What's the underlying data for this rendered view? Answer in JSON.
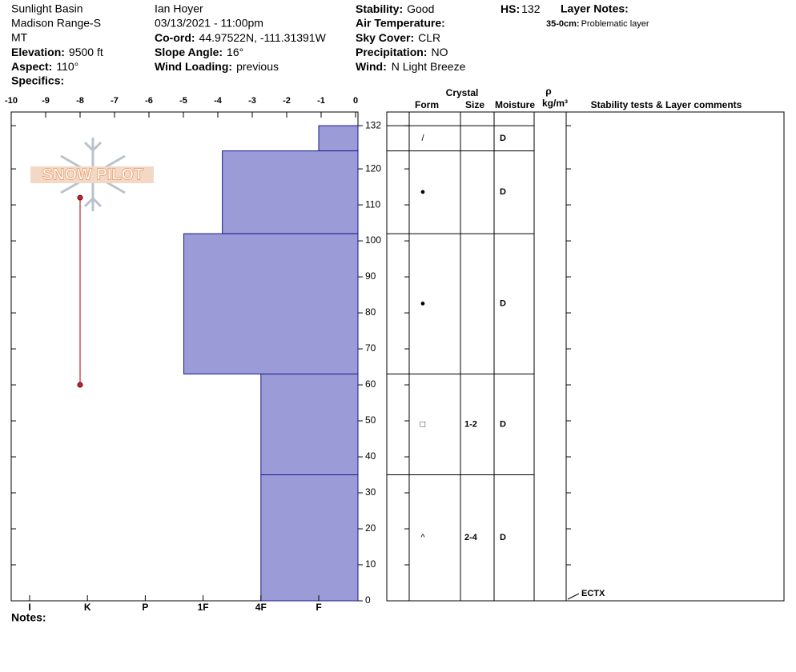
{
  "header": {
    "location": [
      "Sunlight Basin",
      "Madison Range-S",
      "MT"
    ],
    "elevation": {
      "label": "Elevation:",
      "value": "9500 ft"
    },
    "aspect": {
      "label": "Aspect:",
      "value": "110°"
    },
    "specifics": {
      "label": "Specifics:"
    },
    "observer": "Ian Hoyer",
    "datetime": "03/13/2021 - 11:00pm",
    "coord": {
      "label": "Co-ord:",
      "value": "44.97522N, -111.31391W"
    },
    "slope_angle": {
      "label": "Slope Angle:",
      "value": "16°"
    },
    "wind_loading": {
      "label": "Wind Loading:",
      "value": "previous"
    },
    "stability": {
      "label": "Stability:",
      "value": "Good"
    },
    "air_temperature": {
      "label": "Air Temperature:"
    },
    "sky_cover": {
      "label": "Sky Cover:",
      "value": "CLR"
    },
    "precipitation": {
      "label": "Precipitation:",
      "value": "NO"
    },
    "wind": {
      "label": "Wind:",
      "value": "N Light Breeze"
    },
    "hs": {
      "label": "HS:",
      "value": "132"
    },
    "layer_notes": {
      "label": "Layer Notes:",
      "notes": [
        {
          "range": "35-0cm:",
          "text": "Problematic layer"
        }
      ]
    }
  },
  "logo": "SNOW PILOT",
  "profile": {
    "height_lim": [
      0,
      135.8
    ],
    "height_ticks": [
      0,
      10,
      20,
      30,
      40,
      50,
      60,
      70,
      80,
      90,
      100,
      110,
      120,
      132
    ],
    "temp_lim": [
      -10,
      0
    ],
    "temp_ticks": [
      -10,
      -9,
      -8,
      -7,
      -6,
      -5,
      -4,
      -3,
      -2,
      -1,
      0
    ],
    "hardness_scale": [
      "I",
      "K",
      "P",
      "1F",
      "4F",
      "F"
    ],
    "temps": [
      {
        "height": 112,
        "temp": -8
      },
      {
        "height": 60,
        "temp": -8
      }
    ],
    "bar_color": "#9b9bd7",
    "temp_color": "#c0282d"
  },
  "table": {
    "headers": {
      "crystal": "Crystal",
      "form": "Form",
      "size": "Size",
      "moisture": "Moisture",
      "density_symbol": "ρ",
      "density_unit": "kg/m³",
      "comments": "Stability tests & Layer comments"
    },
    "layers": [
      {
        "top": 132,
        "bottom": 125,
        "hardness": "F",
        "form": "/",
        "moisture": "D"
      },
      {
        "top": 125,
        "bottom": 102,
        "hardness": "1F-",
        "form": "●",
        "moisture": "D"
      },
      {
        "top": 102,
        "bottom": 63,
        "hardness": "1F+",
        "form": "●",
        "moisture": "D"
      },
      {
        "top": 63,
        "bottom": 35,
        "hardness": "4F",
        "form": "□",
        "size": "1-2",
        "moisture": "D"
      },
      {
        "top": 35,
        "bottom": 0,
        "hardness": "4F",
        "form": "^",
        "size": "2-4",
        "moisture": "D"
      }
    ],
    "tests": [
      {
        "height": 0,
        "label": "ECTX"
      }
    ]
  },
  "notes": {
    "label": "Notes:"
  }
}
